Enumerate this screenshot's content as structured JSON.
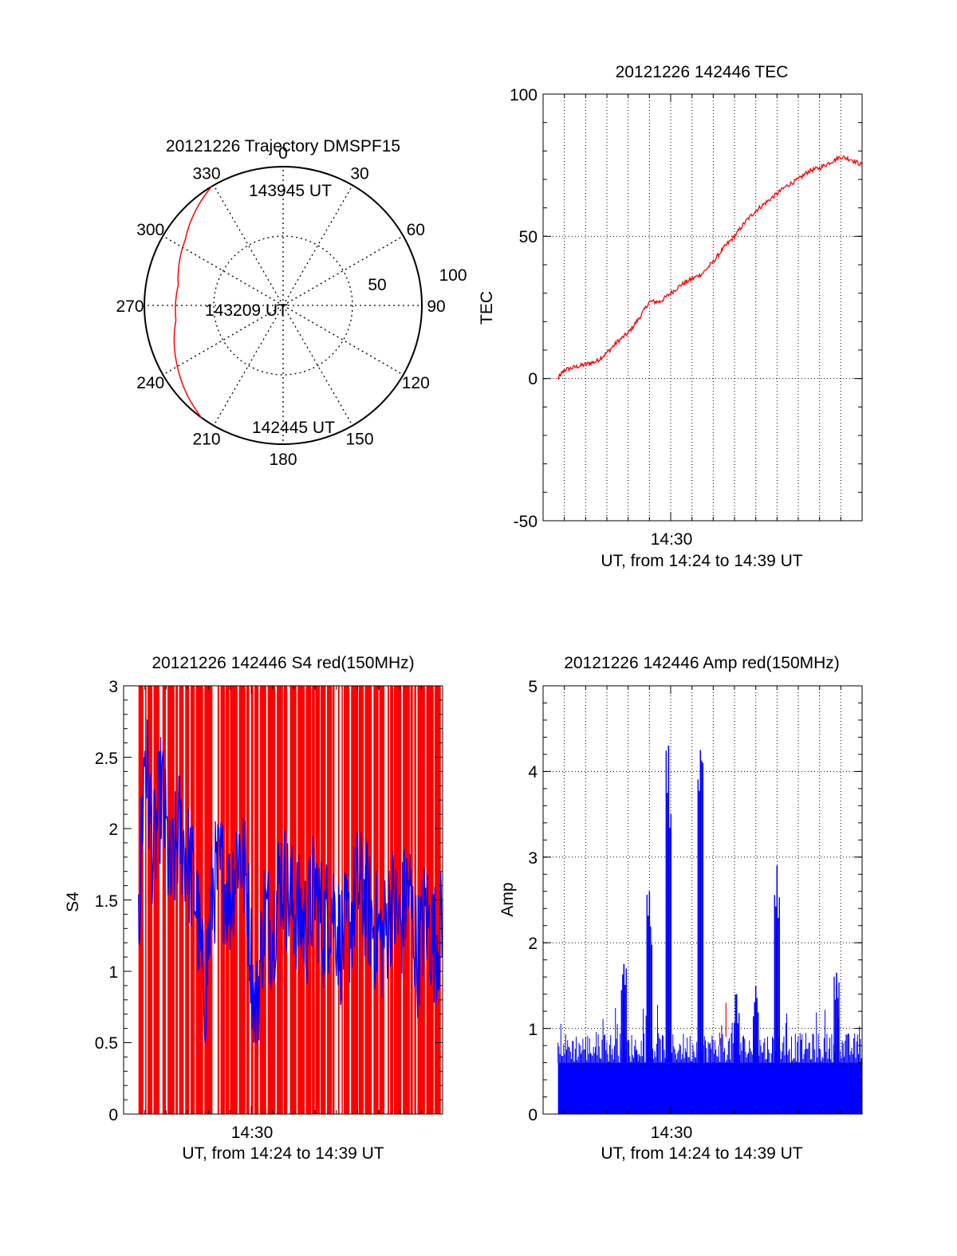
{
  "chart_data": [
    {
      "panel": "polar",
      "type": "scatter",
      "projection": "polar",
      "title": "20121226 Trajectory DMSPF15",
      "angle_labels": [
        "0",
        "30",
        "60",
        "90",
        "120",
        "150",
        "180",
        "210",
        "240",
        "270",
        "300",
        "330"
      ],
      "radius_labels": [
        "50",
        "100"
      ],
      "rlim": [
        0,
        100
      ],
      "trajectory": {
        "color": "#ff0000",
        "points": [
          {
            "azimuth_deg": 329,
            "radius": 100,
            "label": "143945 UT"
          },
          {
            "azimuth_deg": 304,
            "radius": 85
          },
          {
            "azimuth_deg": 281,
            "radius": 77
          },
          {
            "azimuth_deg": 262,
            "radius": 78
          },
          {
            "azimuth_deg": 240,
            "radius": 88
          },
          {
            "azimuth_deg": 216,
            "radius": 100,
            "label": "142445 UT"
          }
        ],
        "mid_label": "143209 UT"
      },
      "grid": "dotted"
    },
    {
      "panel": "tec",
      "type": "line",
      "title": "20121226 142446 TEC",
      "xlabel": "UT, from 14:24 to 14:39 UT",
      "ylabel": "TEC",
      "ylim": [
        -50,
        100
      ],
      "yticks": [
        "100",
        "50",
        "0",
        "-50"
      ],
      "xticks": [
        {
          "t": 30,
          "label": "14:30"
        }
      ],
      "xlim_min": [
        24,
        39
      ],
      "grid": "dotted",
      "series": [
        {
          "color": "#ff0000",
          "x": [
            24.7,
            25.0,
            25.5,
            26.0,
            26.5,
            27.0,
            27.5,
            28.0,
            28.5,
            29.0,
            29.5,
            30.0,
            30.5,
            31.0,
            31.5,
            32.0,
            32.5,
            33.0,
            33.5,
            34.0,
            34.5,
            35.0,
            35.5,
            36.0,
            36.5,
            37.0,
            37.5,
            38.0,
            38.5,
            39.0
          ],
          "y": [
            0,
            3,
            4,
            5,
            6,
            9,
            13,
            16,
            21,
            27,
            27,
            30,
            33,
            35,
            37,
            41,
            46,
            50,
            55,
            59,
            62,
            65,
            68,
            70,
            73,
            74,
            76,
            78,
            77,
            75
          ]
        }
      ]
    },
    {
      "panel": "s4",
      "type": "line",
      "title": "20121226 142446 S4 red(150MHz)",
      "xlabel": "UT, from 14:24 to 14:39 UT",
      "ylabel": "S4",
      "ylim": [
        0,
        3
      ],
      "yticks": [
        "3",
        "2.5",
        "2",
        "1.5",
        "1",
        "0.5",
        "0"
      ],
      "xticks": [
        {
          "t": 30,
          "label": "14:30"
        }
      ],
      "xlim_min": [
        24,
        39
      ],
      "series": [
        {
          "name_color": "#ff0000",
          "color": "#ff0000",
          "style": "dense vertical fill 0 to 3"
        },
        {
          "color": "#0000ff",
          "x": [
            24.7,
            25.0,
            25.4,
            25.8,
            26.2,
            26.6,
            27.0,
            27.4,
            27.8,
            28.2,
            28.6,
            29.0,
            29.4,
            29.8,
            30.2,
            30.6,
            31.0,
            31.4,
            31.8,
            32.2,
            32.6,
            33.0,
            33.4,
            33.8,
            34.2,
            34.6,
            35.0,
            35.4,
            35.8,
            36.2,
            36.6,
            37.0,
            37.4,
            37.8,
            38.2,
            38.6,
            39.0
          ],
          "y": [
            1.3,
            2.6,
            1.8,
            2.3,
            1.6,
            2.0,
            1.8,
            1.5,
            0.8,
            1.6,
            1.7,
            1.5,
            1.9,
            1.6,
            0.6,
            1.4,
            1.3,
            1.7,
            1.5,
            1.4,
            1.3,
            1.6,
            1.3,
            1.5,
            1.2,
            1.3,
            1.6,
            1.5,
            1.3,
            1.2,
            1.5,
            1.3,
            1.6,
            1.1,
            1.4,
            1.2,
            1.3
          ]
        }
      ]
    },
    {
      "panel": "amp",
      "type": "bar",
      "title": "20121226 142446 Amp red(150MHz)",
      "xlabel": "UT, from 14:24 to 14:39 UT",
      "ylabel": "Amp",
      "ylim": [
        0,
        5
      ],
      "yticks": [
        "5",
        "4",
        "3",
        "2",
        "1",
        "0"
      ],
      "xticks": [
        {
          "t": 30,
          "label": "14:30"
        }
      ],
      "xlim_min": [
        24,
        39
      ],
      "grid": "dotted",
      "series": [
        {
          "color": "#0000ff",
          "baseline_level": 0.7,
          "peaks": [
            {
              "t": 27.8,
              "value": 1.75
            },
            {
              "t": 28.4,
              "value": 0.75
            },
            {
              "t": 29.0,
              "value": 2.6
            },
            {
              "t": 29.9,
              "value": 4.3
            },
            {
              "t": 31.4,
              "value": 4.25
            },
            {
              "t": 33.1,
              "value": 1.4
            },
            {
              "t": 34.0,
              "value": 1.5
            },
            {
              "t": 35.0,
              "value": 2.9
            },
            {
              "t": 37.8,
              "value": 1.65
            }
          ]
        },
        {
          "color": "#ff0000",
          "peaks": [
            {
              "t": 32.6,
              "value": 1.3
            }
          ]
        }
      ]
    }
  ]
}
